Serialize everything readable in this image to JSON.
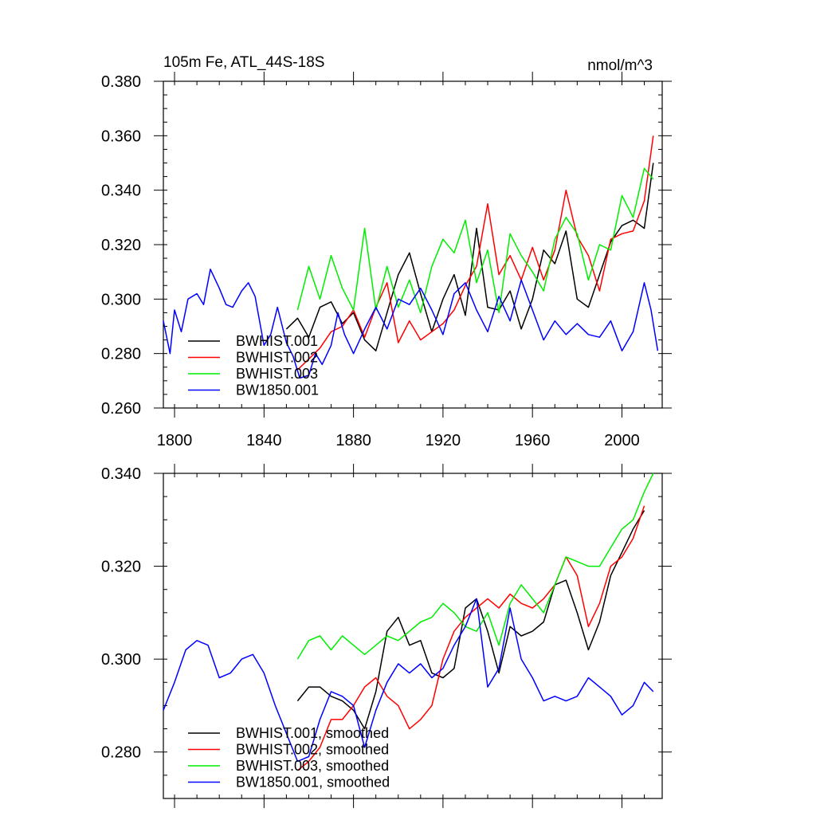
{
  "chart_data": [
    {
      "type": "line",
      "title": "105m Fe, ATL_44S-18S",
      "units": "nmol/m^3",
      "xlim": [
        1795,
        2018
      ],
      "ylim": [
        0.26,
        0.38
      ],
      "xticks": [
        1800,
        1840,
        1880,
        1920,
        1960,
        2000
      ],
      "xtick_labels": [
        "1800",
        "1840",
        "1880",
        "1920",
        "1960",
        "2000"
      ],
      "yticks": [
        0.26,
        0.28,
        0.3,
        0.32,
        0.34,
        0.36,
        0.38
      ],
      "ytick_labels": [
        "0.260",
        "0.280",
        "0.300",
        "0.320",
        "0.340",
        "0.360",
        "0.380"
      ],
      "legend_position": "bottom-left",
      "series": [
        {
          "name": "BWHIST.001",
          "color": "#000000",
          "x": [
            1850,
            1855,
            1860,
            1865,
            1870,
            1875,
            1880,
            1885,
            1890,
            1895,
            1900,
            1905,
            1910,
            1915,
            1920,
            1925,
            1930,
            1935,
            1940,
            1945,
            1950,
            1955,
            1960,
            1965,
            1970,
            1975,
            1980,
            1985,
            1990,
            1995,
            2000,
            2005,
            2010,
            2014
          ],
          "y": [
            0.289,
            0.293,
            0.286,
            0.297,
            0.299,
            0.291,
            0.295,
            0.285,
            0.281,
            0.295,
            0.309,
            0.317,
            0.302,
            0.288,
            0.3,
            0.309,
            0.294,
            0.326,
            0.297,
            0.296,
            0.303,
            0.289,
            0.3,
            0.318,
            0.313,
            0.325,
            0.3,
            0.297,
            0.309,
            0.321,
            0.327,
            0.329,
            0.326,
            0.35
          ]
        },
        {
          "name": "BWHIST.002",
          "color": "#ff0000",
          "x": [
            1855,
            1860,
            1865,
            1870,
            1875,
            1880,
            1885,
            1890,
            1895,
            1900,
            1905,
            1910,
            1915,
            1920,
            1925,
            1930,
            1935,
            1940,
            1945,
            1950,
            1955,
            1960,
            1965,
            1970,
            1975,
            1980,
            1985,
            1990,
            1995,
            2000,
            2005,
            2010,
            2014
          ],
          "y": [
            0.274,
            0.278,
            0.282,
            0.288,
            0.29,
            0.296,
            0.286,
            0.297,
            0.306,
            0.284,
            0.292,
            0.285,
            0.288,
            0.291,
            0.296,
            0.305,
            0.312,
            0.335,
            0.309,
            0.316,
            0.307,
            0.319,
            0.307,
            0.318,
            0.34,
            0.323,
            0.316,
            0.303,
            0.322,
            0.324,
            0.325,
            0.336,
            0.36
          ]
        },
        {
          "name": "BWHIST.003",
          "color": "#00ee00",
          "x": [
            1855,
            1860,
            1865,
            1870,
            1875,
            1880,
            1885,
            1890,
            1895,
            1900,
            1905,
            1910,
            1915,
            1920,
            1925,
            1930,
            1935,
            1940,
            1945,
            1950,
            1955,
            1960,
            1965,
            1970,
            1975,
            1980,
            1985,
            1990,
            1995,
            2000,
            2005,
            2010,
            2014
          ],
          "y": [
            0.296,
            0.312,
            0.3,
            0.316,
            0.304,
            0.296,
            0.326,
            0.296,
            0.312,
            0.297,
            0.307,
            0.295,
            0.312,
            0.322,
            0.317,
            0.329,
            0.306,
            0.318,
            0.295,
            0.324,
            0.316,
            0.31,
            0.303,
            0.322,
            0.33,
            0.324,
            0.307,
            0.32,
            0.318,
            0.338,
            0.33,
            0.348,
            0.344
          ]
        },
        {
          "name": "BW1850.001",
          "color": "#0000ff",
          "x": [
            1795,
            1798,
            1800,
            1803,
            1806,
            1810,
            1813,
            1816,
            1820,
            1823,
            1826,
            1830,
            1833,
            1836,
            1840,
            1843,
            1846,
            1850,
            1853,
            1856,
            1860,
            1863,
            1866,
            1870,
            1873,
            1876,
            1880,
            1885,
            1890,
            1895,
            1900,
            1905,
            1910,
            1915,
            1920,
            1925,
            1930,
            1935,
            1940,
            1945,
            1950,
            1955,
            1960,
            1965,
            1970,
            1975,
            1980,
            1985,
            1990,
            1995,
            2000,
            2005,
            2010,
            2013,
            2016
          ],
          "y": [
            0.292,
            0.28,
            0.296,
            0.288,
            0.3,
            0.302,
            0.298,
            0.311,
            0.304,
            0.298,
            0.297,
            0.303,
            0.306,
            0.301,
            0.283,
            0.287,
            0.297,
            0.284,
            0.279,
            0.271,
            0.272,
            0.28,
            0.276,
            0.283,
            0.295,
            0.287,
            0.28,
            0.289,
            0.297,
            0.289,
            0.3,
            0.298,
            0.304,
            0.296,
            0.287,
            0.302,
            0.306,
            0.296,
            0.288,
            0.301,
            0.292,
            0.307,
            0.296,
            0.285,
            0.292,
            0.287,
            0.291,
            0.287,
            0.286,
            0.292,
            0.281,
            0.288,
            0.306,
            0.296,
            0.281
          ]
        }
      ]
    },
    {
      "type": "line",
      "xlim": [
        1795,
        2018
      ],
      "ylim": [
        0.27,
        0.34
      ],
      "xticks": [
        1800,
        1840,
        1880,
        1920,
        1960,
        2000
      ],
      "yticks": [
        0.28,
        0.3,
        0.32,
        0.34
      ],
      "ytick_labels": [
        "0.280",
        "0.300",
        "0.320",
        "0.340"
      ],
      "legend_position": "bottom-left",
      "series": [
        {
          "name": "BWHIST.001, smoothed",
          "color": "#000000",
          "x": [
            1855,
            1860,
            1865,
            1870,
            1875,
            1880,
            1885,
            1890,
            1895,
            1900,
            1905,
            1910,
            1915,
            1920,
            1925,
            1930,
            1935,
            1940,
            1945,
            1950,
            1955,
            1960,
            1965,
            1970,
            1975,
            1980,
            1985,
            1990,
            1995,
            2000,
            2005,
            2010
          ],
          "y": [
            0.291,
            0.294,
            0.294,
            0.292,
            0.291,
            0.289,
            0.285,
            0.293,
            0.306,
            0.309,
            0.303,
            0.304,
            0.297,
            0.296,
            0.298,
            0.311,
            0.313,
            0.306,
            0.297,
            0.307,
            0.305,
            0.306,
            0.308,
            0.316,
            0.317,
            0.31,
            0.302,
            0.308,
            0.318,
            0.323,
            0.328,
            0.332
          ]
        },
        {
          "name": "BWHIST.002, smoothed",
          "color": "#ff0000",
          "x": [
            1855,
            1860,
            1865,
            1870,
            1875,
            1880,
            1885,
            1890,
            1895,
            1900,
            1905,
            1910,
            1915,
            1920,
            1925,
            1930,
            1935,
            1940,
            1945,
            1950,
            1955,
            1960,
            1965,
            1970,
            1975,
            1980,
            1985,
            1990,
            1995,
            2000,
            2005,
            2010
          ],
          "y": [
            0.276,
            0.278,
            0.281,
            0.287,
            0.287,
            0.29,
            0.294,
            0.296,
            0.292,
            0.29,
            0.285,
            0.287,
            0.29,
            0.3,
            0.306,
            0.309,
            0.311,
            0.313,
            0.311,
            0.314,
            0.312,
            0.311,
            0.313,
            0.316,
            0.322,
            0.318,
            0.307,
            0.312,
            0.32,
            0.322,
            0.326,
            0.333
          ]
        },
        {
          "name": "BWHIST.003, smoothed",
          "color": "#00ee00",
          "x": [
            1855,
            1860,
            1865,
            1870,
            1875,
            1880,
            1885,
            1890,
            1895,
            1900,
            1905,
            1910,
            1915,
            1920,
            1925,
            1930,
            1935,
            1940,
            1945,
            1950,
            1955,
            1960,
            1965,
            1970,
            1975,
            1980,
            1985,
            1990,
            1995,
            2000,
            2005,
            2010,
            2014
          ],
          "y": [
            0.3,
            0.304,
            0.305,
            0.302,
            0.305,
            0.303,
            0.301,
            0.303,
            0.305,
            0.304,
            0.306,
            0.308,
            0.309,
            0.312,
            0.31,
            0.307,
            0.306,
            0.31,
            0.303,
            0.312,
            0.316,
            0.313,
            0.31,
            0.316,
            0.322,
            0.321,
            0.32,
            0.32,
            0.324,
            0.328,
            0.33,
            0.336,
            0.34
          ]
        },
        {
          "name": "BW1850.001, smoothed",
          "color": "#0000ff",
          "x": [
            1795,
            1800,
            1805,
            1810,
            1815,
            1820,
            1825,
            1830,
            1835,
            1840,
            1845,
            1850,
            1855,
            1860,
            1865,
            1870,
            1875,
            1880,
            1885,
            1890,
            1895,
            1900,
            1905,
            1910,
            1915,
            1920,
            1925,
            1930,
            1935,
            1940,
            1945,
            1950,
            1955,
            1960,
            1965,
            1970,
            1975,
            1980,
            1985,
            1990,
            1995,
            2000,
            2005,
            2010,
            2014
          ],
          "y": [
            0.289,
            0.295,
            0.302,
            0.304,
            0.303,
            0.296,
            0.297,
            0.3,
            0.301,
            0.297,
            0.29,
            0.284,
            0.278,
            0.279,
            0.287,
            0.293,
            0.292,
            0.29,
            0.281,
            0.289,
            0.295,
            0.299,
            0.297,
            0.299,
            0.296,
            0.298,
            0.303,
            0.307,
            0.313,
            0.294,
            0.298,
            0.311,
            0.3,
            0.296,
            0.291,
            0.292,
            0.291,
            0.292,
            0.296,
            0.294,
            0.292,
            0.288,
            0.29,
            0.295,
            0.293
          ]
        }
      ]
    }
  ]
}
